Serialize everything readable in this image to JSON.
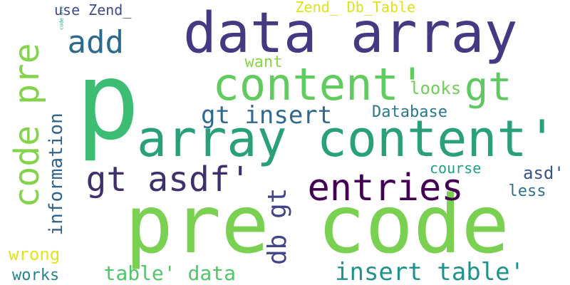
{
  "cloud": {
    "words": [
      {
        "text": "data array",
        "color": "#443983"
      },
      {
        "text": "p",
        "color": "#3dbc74"
      },
      {
        "text": "pre code",
        "color": "#7ad151"
      },
      {
        "text": "array content'",
        "color": "#2aa07a"
      },
      {
        "text": "content'",
        "color": "#62cb5f"
      },
      {
        "text": "code pre",
        "color": "#84d44b"
      },
      {
        "text": "entries",
        "color": "#440154"
      },
      {
        "text": "gt asdf'",
        "color": "#3f306d"
      },
      {
        "text": "gt",
        "color": "#5ec962"
      },
      {
        "text": "add",
        "color": "#2d6a8e"
      },
      {
        "text": "gt insert",
        "color": "#31688e"
      },
      {
        "text": "db gt",
        "color": "#414487"
      },
      {
        "text": "insert table'",
        "color": "#21918c"
      },
      {
        "text": "table' data",
        "color": "#52c569"
      },
      {
        "text": "code pre",
        "color": "#20a386"
      },
      {
        "text": "want",
        "color": "#86d549"
      },
      {
        "text": "looks",
        "color": "#6ece58"
      },
      {
        "text": "Database",
        "color": "#2a788e"
      },
      {
        "text": "course",
        "color": "#1fa188"
      },
      {
        "text": "asd'",
        "color": "#3b528b"
      },
      {
        "text": "less",
        "color": "#2c728e"
      },
      {
        "text": "information",
        "color": "#33638d"
      },
      {
        "text": "wrong",
        "color": "#e2e418"
      },
      {
        "text": "works",
        "color": "#26828e"
      },
      {
        "text": "use Zend_",
        "color": "#3e4a89"
      },
      {
        "text": "Zend_ Db_Table",
        "color": "#dde318"
      }
    ]
  }
}
